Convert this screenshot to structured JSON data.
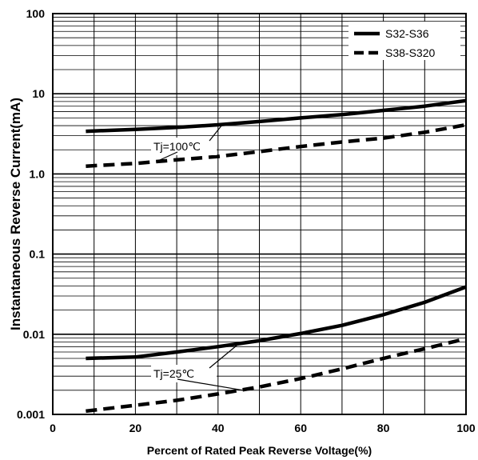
{
  "chart_data": {
    "type": "line",
    "xlabel": "Percent of Rated Peak Reverse Voltage(%)",
    "ylabel": "Instantaneous Reverse Current(mA)",
    "xlim": [
      0,
      100
    ],
    "ylim": [
      0.001,
      100
    ],
    "y_scale": "log",
    "grid": true,
    "legend_position": "top-right",
    "x_ticks": [
      "0",
      "20",
      "40",
      "60",
      "80",
      "100"
    ],
    "y_ticks": [
      "0.001",
      "0.01",
      "0.1",
      "1.0",
      "10",
      "100"
    ],
    "series": [
      {
        "name": "S32-S36",
        "style": "solid",
        "condition": "Tj=100℃",
        "x": [
          8,
          20,
          30,
          40,
          50,
          60,
          70,
          80,
          90,
          100
        ],
        "y": [
          3.4,
          3.6,
          3.8,
          4.1,
          4.5,
          5.0,
          5.5,
          6.2,
          7.0,
          8.2
        ]
      },
      {
        "name": "S38-S320",
        "style": "dashed",
        "condition": "Tj=100℃",
        "x": [
          8,
          20,
          30,
          40,
          50,
          60,
          70,
          80,
          90,
          100
        ],
        "y": [
          1.25,
          1.35,
          1.5,
          1.65,
          1.9,
          2.2,
          2.5,
          2.8,
          3.3,
          4.1
        ]
      },
      {
        "name": "S32-S36",
        "style": "solid",
        "condition": "Tj=25℃",
        "x": [
          8,
          20,
          30,
          40,
          50,
          60,
          70,
          80,
          90,
          100
        ],
        "y": [
          0.005,
          0.0052,
          0.006,
          0.007,
          0.0083,
          0.0102,
          0.0129,
          0.0175,
          0.025,
          0.039
        ]
      },
      {
        "name": "S38-S320",
        "style": "dashed",
        "condition": "Tj=25℃",
        "x": [
          8,
          20,
          30,
          40,
          50,
          60,
          70,
          80,
          90,
          100
        ],
        "y": [
          0.0011,
          0.0013,
          0.0015,
          0.0018,
          0.0022,
          0.0028,
          0.0037,
          0.005,
          0.0066,
          0.0088
        ]
      }
    ],
    "legend": [
      {
        "label": "S32-S36",
        "style": "solid"
      },
      {
        "label": "S38-S320",
        "style": "dashed"
      }
    ],
    "annotations": [
      {
        "text": "Tj=100℃",
        "points": [
          {
            "x": 41,
            "y": 4.1
          },
          {
            "x": 25,
            "y": 1.42
          }
        ]
      },
      {
        "text": "Tj=25℃",
        "points": [
          {
            "x": 45,
            "y": 0.0076
          },
          {
            "x": 46,
            "y": 0.002
          }
        ]
      }
    ]
  }
}
